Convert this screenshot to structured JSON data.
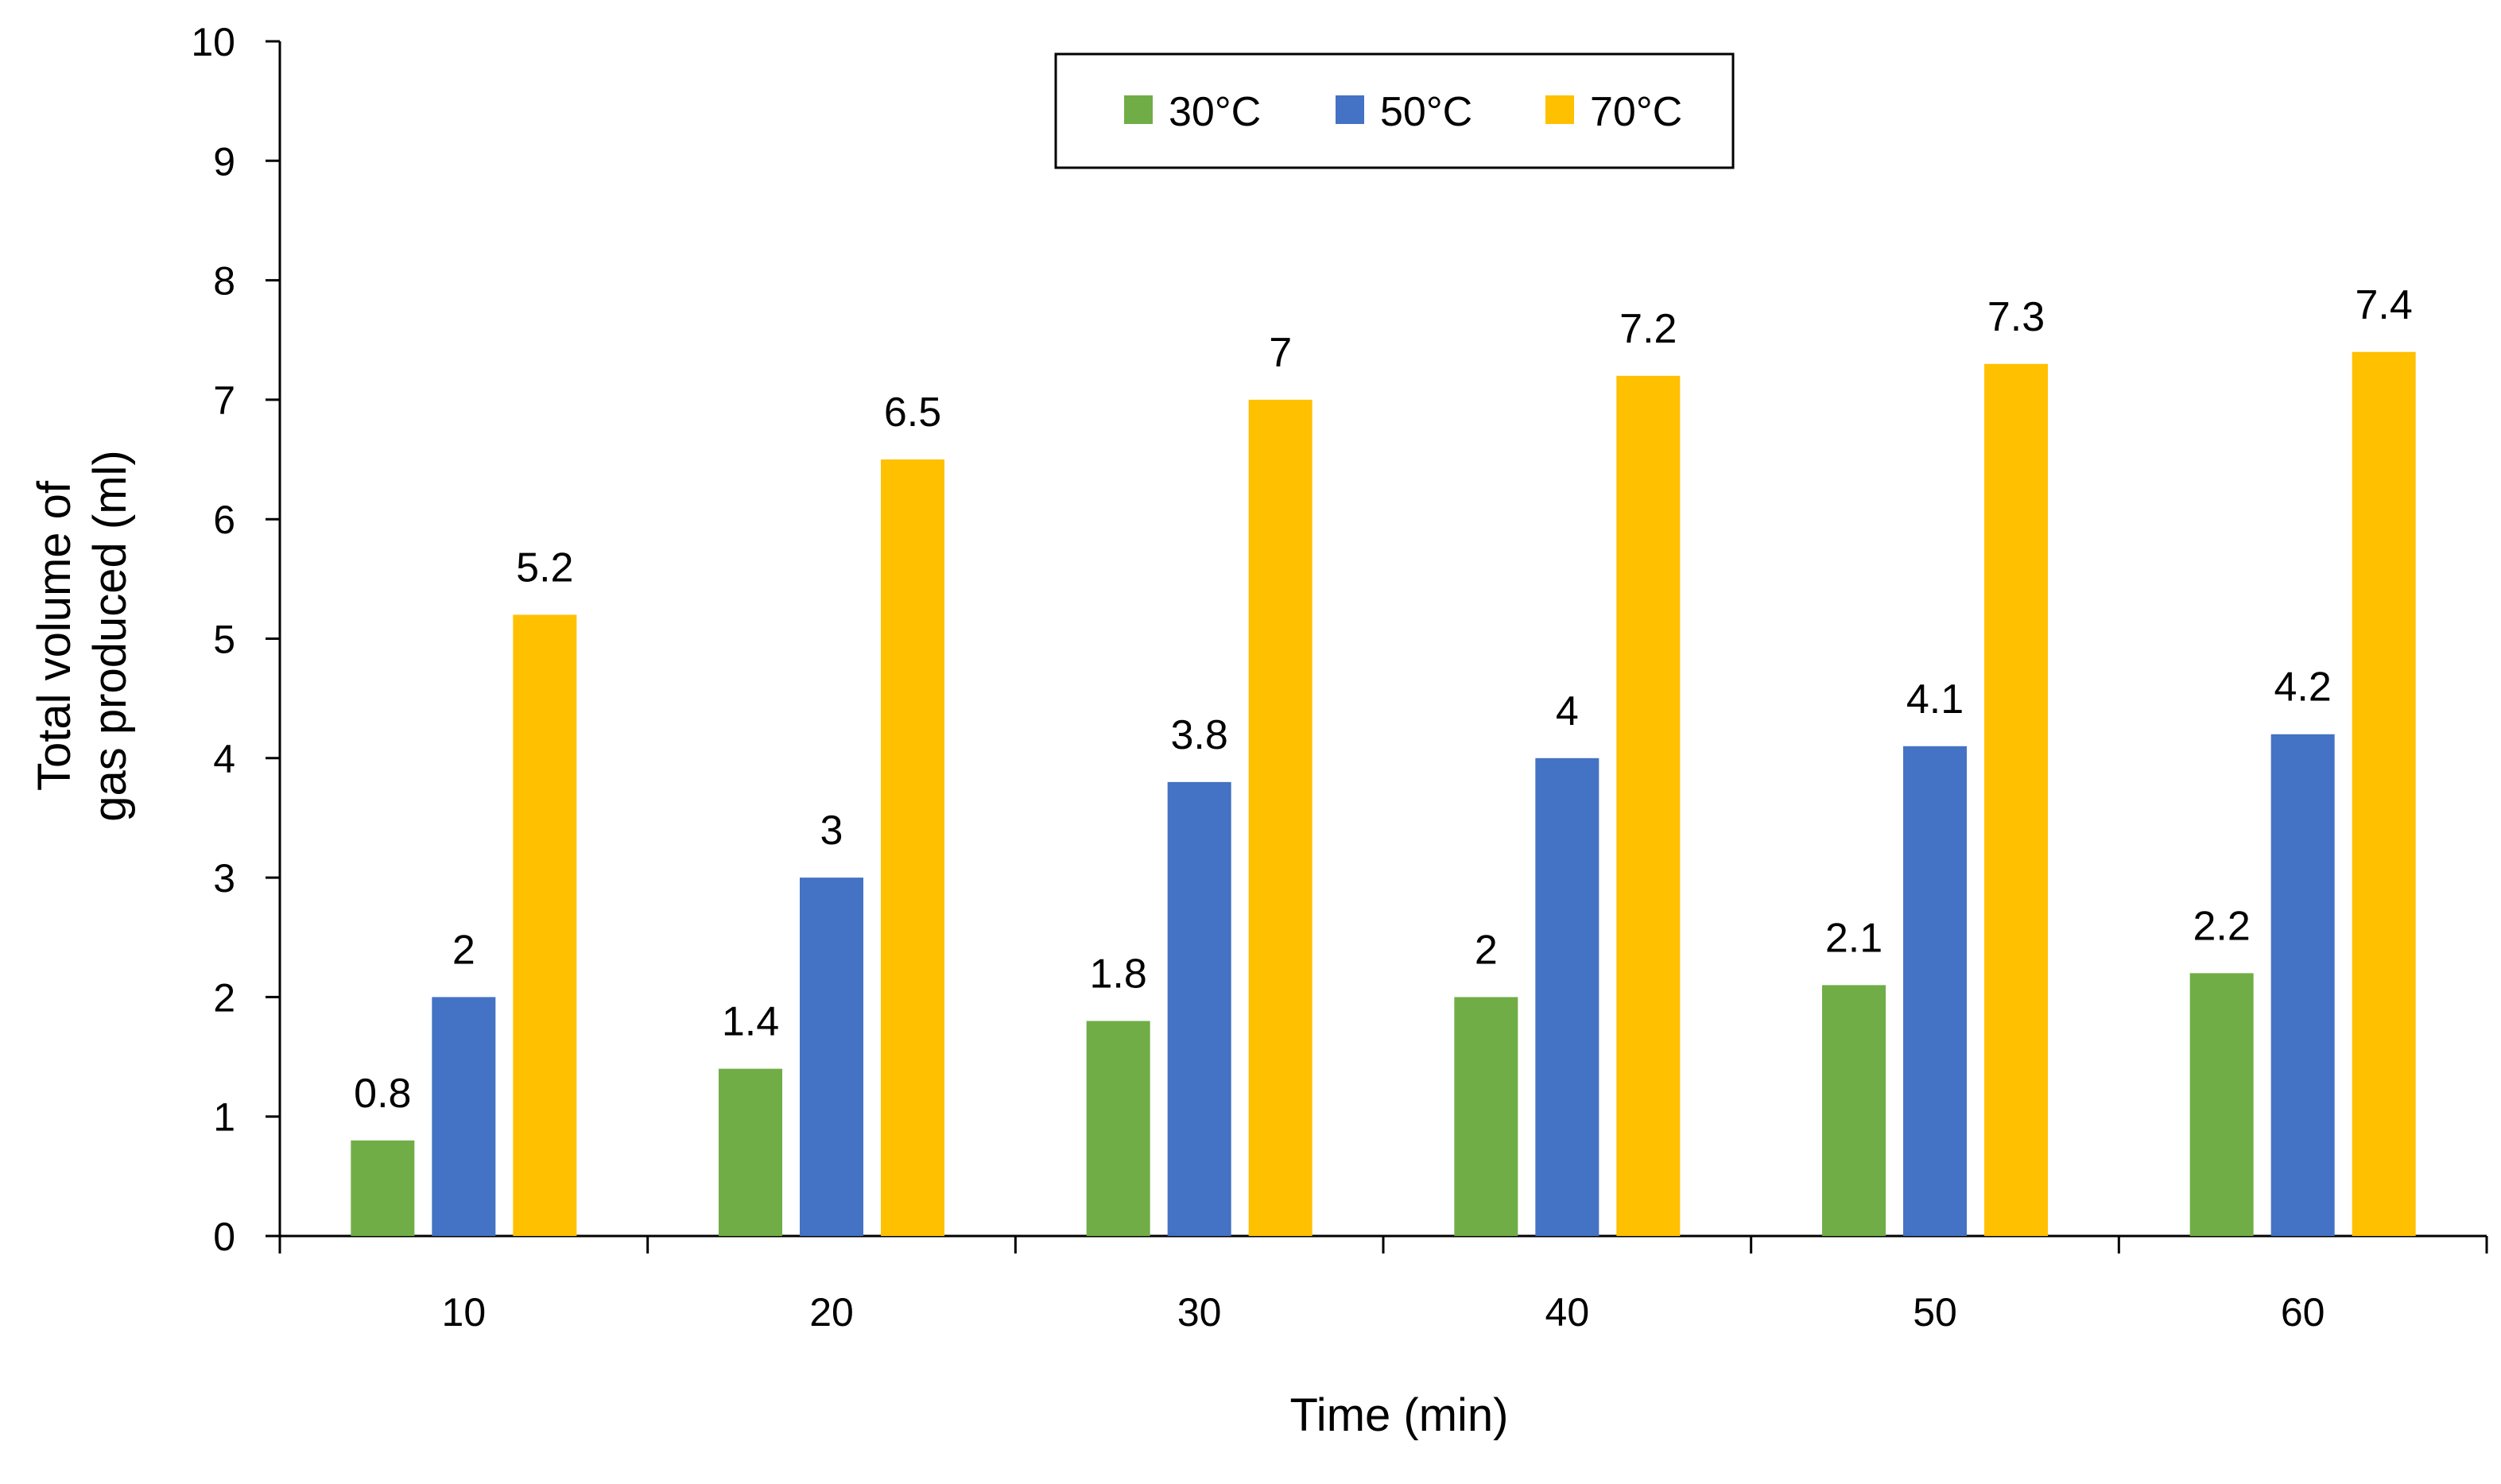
{
  "chart_data": {
    "type": "bar",
    "title": "",
    "xlabel": "Time (min)",
    "ylabel_lines": [
      "Total volume of",
      "gas produced (ml)"
    ],
    "categories": [
      "10",
      "20",
      "30",
      "40",
      "50",
      "60"
    ],
    "series": [
      {
        "name": "30°C",
        "color": "#70AD47",
        "values": [
          0.8,
          1.4,
          1.8,
          2,
          2.1,
          2.2
        ],
        "labels": [
          "0.8",
          "1.4",
          "1.8",
          "2",
          "2.1",
          "2.2"
        ]
      },
      {
        "name": "50°C",
        "color": "#4472C4",
        "values": [
          2,
          3,
          3.8,
          4,
          4.1,
          4.2
        ],
        "labels": [
          "2",
          "3",
          "3.8",
          "4",
          "4.1",
          "4.2"
        ]
      },
      {
        "name": "70°C",
        "color": "#FFC000",
        "values": [
          5.2,
          6.5,
          7,
          7.2,
          7.3,
          7.4
        ],
        "labels": [
          "5.2",
          "6.5",
          "7",
          "7.2",
          "7.3",
          "7.4"
        ]
      }
    ],
    "ylim": [
      0,
      10
    ],
    "yticks": [
      "0",
      "1",
      "2",
      "3",
      "4",
      "5",
      "6",
      "7",
      "8",
      "9",
      "10"
    ],
    "grid": false,
    "legend_position": "top-center"
  }
}
